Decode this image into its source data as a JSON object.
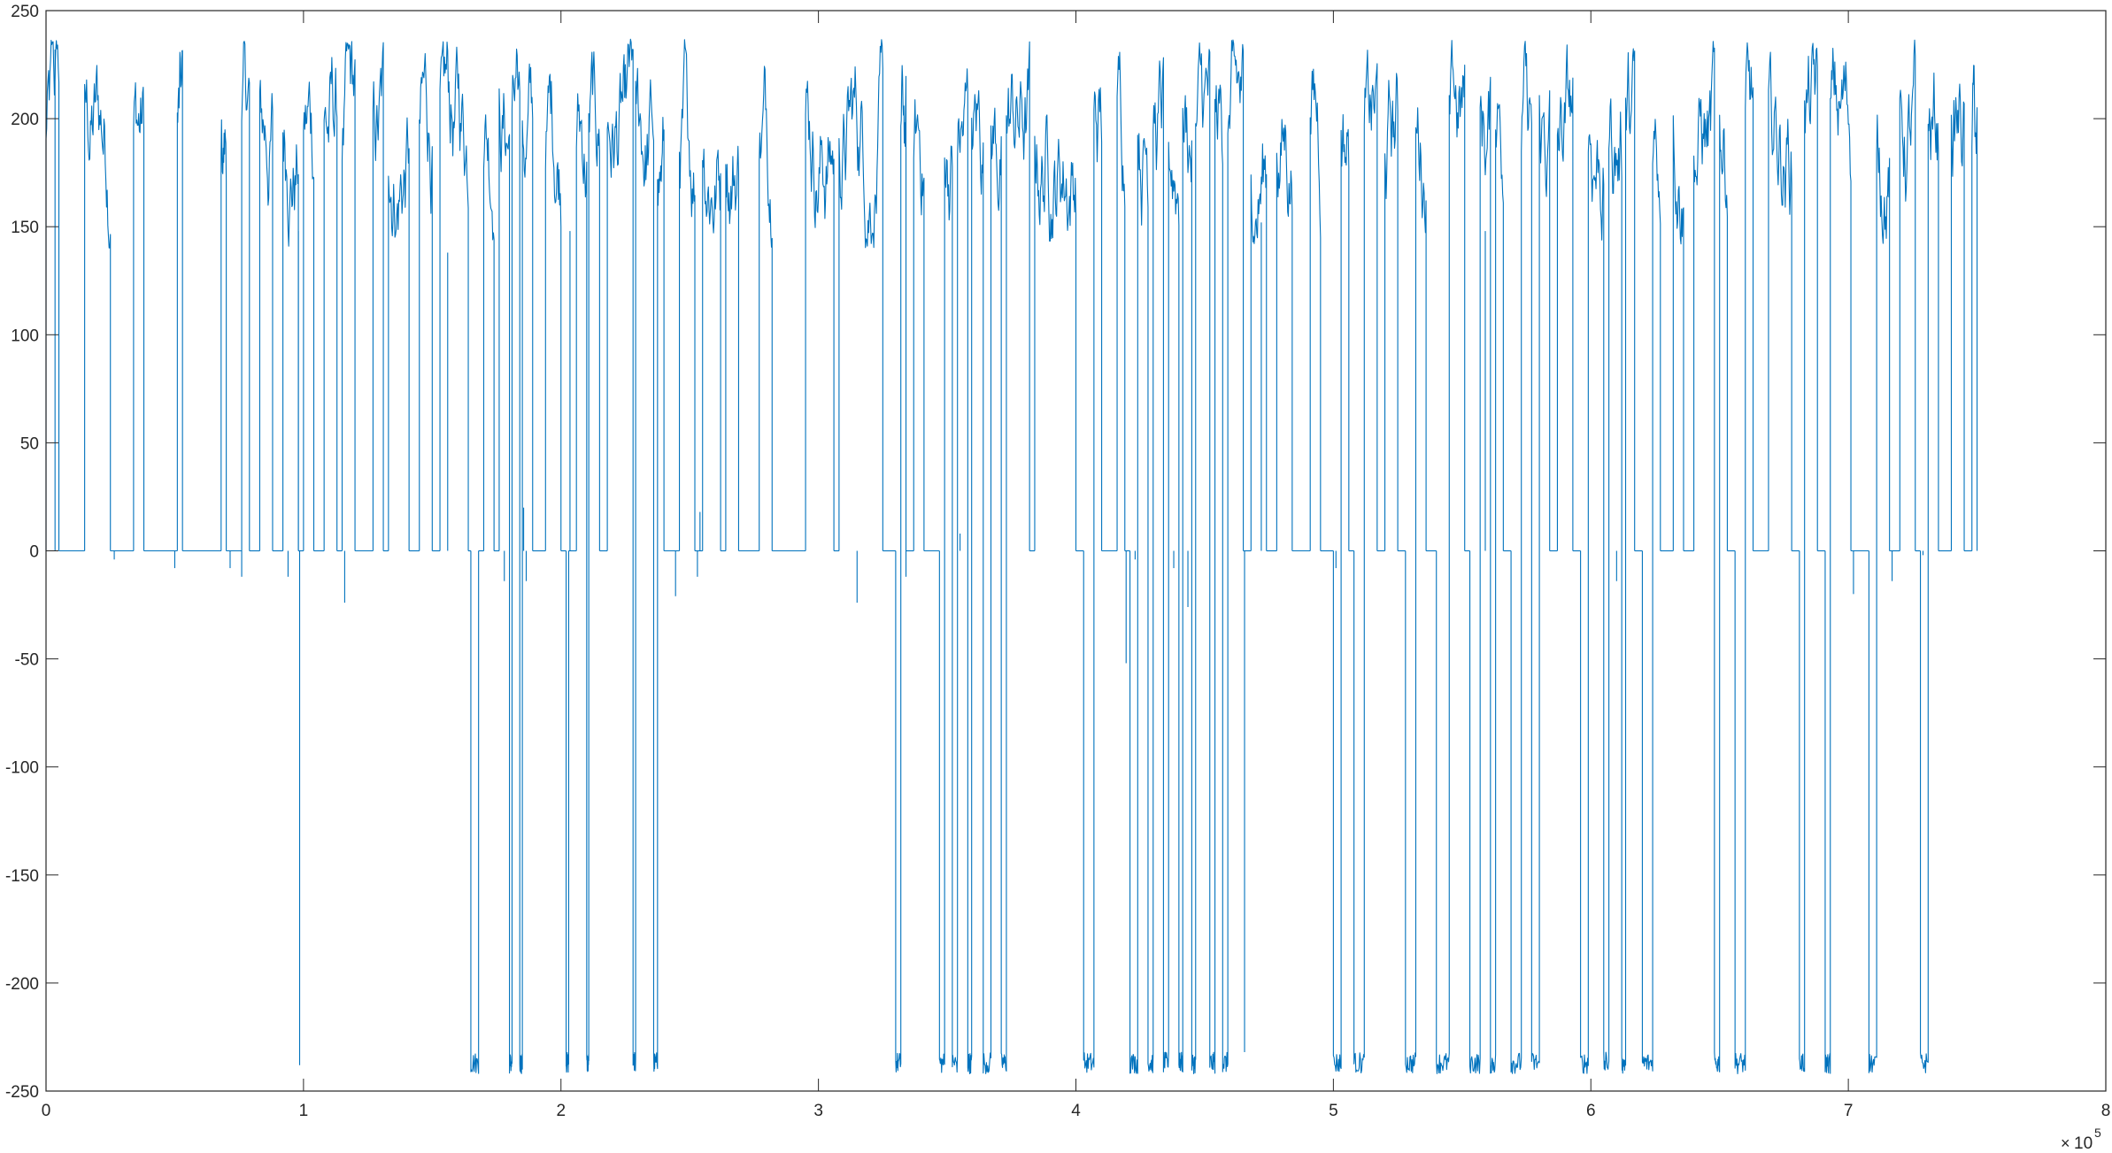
{
  "chart_data": {
    "type": "line",
    "title": "",
    "xlabel": "",
    "ylabel": "",
    "xlim": [
      0,
      800000
    ],
    "ylim": [
      -250,
      250
    ],
    "x_exponent_label": {
      "base": "10",
      "exponent": "5"
    },
    "x_ticks": [
      {
        "value": 0,
        "label": "0"
      },
      {
        "value": 100000,
        "label": "1"
      },
      {
        "value": 200000,
        "label": "2"
      },
      {
        "value": 300000,
        "label": "3"
      },
      {
        "value": 400000,
        "label": "4"
      },
      {
        "value": 500000,
        "label": "5"
      },
      {
        "value": 600000,
        "label": "6"
      },
      {
        "value": 700000,
        "label": "7"
      },
      {
        "value": 800000,
        "label": "8"
      }
    ],
    "y_ticks": [
      {
        "value": 250,
        "label": "250"
      },
      {
        "value": 200,
        "label": "200"
      },
      {
        "value": 150,
        "label": "150"
      },
      {
        "value": 100,
        "label": "100"
      },
      {
        "value": 50,
        "label": "50"
      },
      {
        "value": 0,
        "label": "0"
      },
      {
        "value": -50,
        "label": "-50"
      },
      {
        "value": -100,
        "label": "-100"
      },
      {
        "value": -150,
        "label": "-150"
      },
      {
        "value": -200,
        "label": "-200"
      },
      {
        "value": -250,
        "label": "-250"
      }
    ],
    "grid": false,
    "line_color": "#0072BD",
    "series": [
      {
        "x_range": [
          0,
          750000
        ],
        "baseline": 0,
        "positive_band": [
          140,
          237
        ],
        "negative_band": [
          -244,
          -232
        ],
        "segments": [
          [
            0,
            5000,
            "hi"
          ],
          [
            5000,
            15000,
            "z"
          ],
          [
            15000,
            25000,
            "hi"
          ],
          [
            25000,
            34000,
            "z"
          ],
          [
            34000,
            38000,
            "hi"
          ],
          [
            38000,
            51000,
            "z"
          ],
          [
            51000,
            53000,
            "hi"
          ],
          [
            53000,
            68000,
            "z"
          ],
          [
            68000,
            70000,
            "hi"
          ],
          [
            70000,
            76000,
            "z"
          ],
          [
            76000,
            79000,
            "hi"
          ],
          [
            79000,
            83000,
            "z"
          ],
          [
            83000,
            88000,
            "hi"
          ],
          [
            88000,
            92000,
            "z"
          ],
          [
            92000,
            98000,
            "hi"
          ],
          [
            98000,
            100000,
            "z"
          ],
          [
            100000,
            104000,
            "hi"
          ],
          [
            104000,
            108000,
            "z"
          ],
          [
            108000,
            113000,
            "hi"
          ],
          [
            113000,
            115000,
            "z"
          ],
          [
            115000,
            120000,
            "hi"
          ],
          [
            120000,
            127000,
            "z"
          ],
          [
            127000,
            131000,
            "hi"
          ],
          [
            131000,
            133000,
            "z"
          ],
          [
            133000,
            141000,
            "hi"
          ],
          [
            141000,
            145000,
            "z"
          ],
          [
            145000,
            150000,
            "hi"
          ],
          [
            150000,
            153000,
            "z"
          ],
          [
            153000,
            164000,
            "hi"
          ],
          [
            164000,
            165000,
            "z"
          ],
          [
            165000,
            168000,
            "lo"
          ],
          [
            168000,
            170000,
            "z"
          ],
          [
            170000,
            174000,
            "hi"
          ],
          [
            174000,
            176000,
            "z"
          ],
          [
            176000,
            180000,
            "hi"
          ],
          [
            180000,
            181000,
            "lo"
          ],
          [
            181000,
            184000,
            "hi"
          ],
          [
            184000,
            185000,
            "lo"
          ],
          [
            185000,
            189000,
            "hi"
          ],
          [
            189000,
            194000,
            "z"
          ],
          [
            194000,
            200000,
            "hi"
          ],
          [
            200000,
            202000,
            "z"
          ],
          [
            202000,
            203000,
            "lo"
          ],
          [
            203000,
            206000,
            "z"
          ],
          [
            206000,
            210000,
            "hi"
          ],
          [
            210000,
            210800,
            "lo"
          ],
          [
            210800,
            215000,
            "hi"
          ],
          [
            215000,
            218000,
            "z"
          ],
          [
            218000,
            228000,
            "hi"
          ],
          [
            228000,
            229000,
            "lo"
          ],
          [
            229000,
            236000,
            "hi"
          ],
          [
            236000,
            237500,
            "lo"
          ],
          [
            237500,
            240000,
            "hi"
          ],
          [
            240000,
            246000,
            "z"
          ],
          [
            246000,
            252000,
            "hi"
          ],
          [
            252000,
            255000,
            "z"
          ],
          [
            255000,
            262000,
            "hi"
          ],
          [
            262000,
            264000,
            "z"
          ],
          [
            264000,
            269000,
            "hi"
          ],
          [
            269000,
            277000,
            "z"
          ],
          [
            277000,
            282000,
            "hi"
          ],
          [
            282000,
            295000,
            "z"
          ],
          [
            295000,
            306000,
            "hi"
          ],
          [
            306000,
            308000,
            "z"
          ],
          [
            308000,
            325000,
            "hi"
          ],
          [
            325000,
            330000,
            "z"
          ],
          [
            330000,
            332000,
            "lo"
          ],
          [
            332000,
            334000,
            "hi"
          ],
          [
            334000,
            337000,
            "z"
          ],
          [
            337000,
            341000,
            "hi"
          ],
          [
            341000,
            347000,
            "z"
          ],
          [
            347000,
            349000,
            "lo"
          ],
          [
            349000,
            352000,
            "hi"
          ],
          [
            352000,
            354000,
            "lo"
          ],
          [
            354000,
            358000,
            "hi"
          ],
          [
            358000,
            359500,
            "lo"
          ],
          [
            359500,
            364000,
            "hi"
          ],
          [
            364000,
            367000,
            "lo"
          ],
          [
            367000,
            371000,
            "hi"
          ],
          [
            371000,
            373000,
            "lo"
          ],
          [
            373000,
            382000,
            "hi"
          ],
          [
            382000,
            384000,
            "z"
          ],
          [
            384000,
            400000,
            "hi"
          ],
          [
            400000,
            403000,
            "z"
          ],
          [
            403000,
            407000,
            "lo"
          ],
          [
            407000,
            410000,
            "hi"
          ],
          [
            410000,
            416000,
            "z"
          ],
          [
            416000,
            419000,
            "hi"
          ],
          [
            419000,
            421000,
            "z"
          ],
          [
            421000,
            424000,
            "lo"
          ],
          [
            424000,
            428000,
            "hi"
          ],
          [
            428000,
            430000,
            "lo"
          ],
          [
            430000,
            434000,
            "hi"
          ],
          [
            434000,
            436000,
            "lo"
          ],
          [
            436000,
            440000,
            "hi"
          ],
          [
            440000,
            441500,
            "lo"
          ],
          [
            441500,
            445000,
            "hi"
          ],
          [
            445000,
            446500,
            "lo"
          ],
          [
            446500,
            452000,
            "hi"
          ],
          [
            452000,
            454000,
            "lo"
          ],
          [
            454000,
            457000,
            "hi"
          ],
          [
            457000,
            459000,
            "lo"
          ],
          [
            459000,
            465000,
            "hi"
          ],
          [
            465000,
            468000,
            "z"
          ],
          [
            468000,
            474000,
            "hi"
          ],
          [
            474000,
            478000,
            "z"
          ],
          [
            478000,
            484000,
            "hi"
          ],
          [
            484000,
            491000,
            "z"
          ],
          [
            491000,
            495000,
            "hi"
          ],
          [
            495000,
            500000,
            "z"
          ],
          [
            500000,
            503000,
            "lo"
          ],
          [
            503000,
            506000,
            "hi"
          ],
          [
            506000,
            508000,
            "z"
          ],
          [
            508000,
            512000,
            "lo"
          ],
          [
            512000,
            517000,
            "hi"
          ],
          [
            517000,
            520000,
            "z"
          ],
          [
            520000,
            525000,
            "hi"
          ],
          [
            525000,
            528000,
            "z"
          ],
          [
            528000,
            532000,
            "lo"
          ],
          [
            532000,
            536000,
            "hi"
          ],
          [
            536000,
            540000,
            "z"
          ],
          [
            540000,
            545000,
            "lo"
          ],
          [
            545000,
            551000,
            "hi"
          ],
          [
            551000,
            553000,
            "z"
          ],
          [
            553000,
            557000,
            "lo"
          ],
          [
            557000,
            561000,
            "hi"
          ],
          [
            561000,
            563000,
            "lo"
          ],
          [
            563000,
            566000,
            "hi"
          ],
          [
            566000,
            569000,
            "z"
          ],
          [
            569000,
            573000,
            "lo"
          ],
          [
            573000,
            577000,
            "hi"
          ],
          [
            577000,
            580000,
            "lo"
          ],
          [
            580000,
            584000,
            "hi"
          ],
          [
            584000,
            587000,
            "z"
          ],
          [
            587000,
            593000,
            "hi"
          ],
          [
            593000,
            596000,
            "z"
          ],
          [
            596000,
            599000,
            "lo"
          ],
          [
            599000,
            605000,
            "hi"
          ],
          [
            605000,
            607000,
            "lo"
          ],
          [
            607000,
            612000,
            "hi"
          ],
          [
            612000,
            613500,
            "lo"
          ],
          [
            613500,
            617000,
            "hi"
          ],
          [
            617000,
            620000,
            "z"
          ],
          [
            620000,
            624000,
            "lo"
          ],
          [
            624000,
            627000,
            "hi"
          ],
          [
            627000,
            632000,
            "z"
          ],
          [
            632000,
            636000,
            "hi"
          ],
          [
            636000,
            640000,
            "z"
          ],
          [
            640000,
            648000,
            "hi"
          ],
          [
            648000,
            650000,
            "lo"
          ],
          [
            650000,
            653000,
            "hi"
          ],
          [
            653000,
            656000,
            "z"
          ],
          [
            656000,
            660000,
            "lo"
          ],
          [
            660000,
            663000,
            "hi"
          ],
          [
            663000,
            669000,
            "z"
          ],
          [
            669000,
            678000,
            "hi"
          ],
          [
            678000,
            681000,
            "z"
          ],
          [
            681000,
            683000,
            "lo"
          ],
          [
            683000,
            688000,
            "hi"
          ],
          [
            688000,
            691000,
            "z"
          ],
          [
            691000,
            693000,
            "lo"
          ],
          [
            693000,
            701000,
            "hi"
          ],
          [
            701000,
            708000,
            "z"
          ],
          [
            708000,
            711000,
            "lo"
          ],
          [
            711000,
            716000,
            "hi"
          ],
          [
            716000,
            720000,
            "z"
          ],
          [
            720000,
            726000,
            "hi"
          ],
          [
            726000,
            728000,
            "z"
          ],
          [
            728000,
            731000,
            "lo"
          ],
          [
            731000,
            735000,
            "hi"
          ],
          [
            735000,
            740000,
            "z"
          ],
          [
            740000,
            745000,
            "hi"
          ],
          [
            745000,
            748000,
            "z"
          ],
          [
            748000,
            750000,
            "hi"
          ]
        ],
        "spikes": [
          {
            "x": 3500,
            "y": 232
          },
          {
            "x": 26500,
            "y": -4
          },
          {
            "x": 50000,
            "y": -8
          },
          {
            "x": 71500,
            "y": -8
          },
          {
            "x": 76000,
            "y": -12
          },
          {
            "x": 94000,
            "y": -12
          },
          {
            "x": 98000,
            "y": 148
          },
          {
            "x": 98500,
            "y": -238
          },
          {
            "x": 116000,
            "y": -24
          },
          {
            "x": 156000,
            "y": 138
          },
          {
            "x": 178000,
            "y": -14
          },
          {
            "x": 185500,
            "y": 20
          },
          {
            "x": 186500,
            "y": -14
          },
          {
            "x": 203500,
            "y": 148
          },
          {
            "x": 244500,
            "y": -21
          },
          {
            "x": 253000,
            "y": -12
          },
          {
            "x": 254000,
            "y": 18
          },
          {
            "x": 315000,
            "y": -24
          },
          {
            "x": 334000,
            "y": -12
          },
          {
            "x": 355000,
            "y": 8
          },
          {
            "x": 419500,
            "y": -52
          },
          {
            "x": 423000,
            "y": -4
          },
          {
            "x": 438000,
            "y": -8
          },
          {
            "x": 443500,
            "y": -26
          },
          {
            "x": 465500,
            "y": -232
          },
          {
            "x": 472000,
            "y": 152
          },
          {
            "x": 501000,
            "y": -8
          },
          {
            "x": 559000,
            "y": 148
          },
          {
            "x": 610000,
            "y": -14
          },
          {
            "x": 702000,
            "y": -20
          },
          {
            "x": 717000,
            "y": -14
          },
          {
            "x": 729000,
            "y": -2
          }
        ]
      }
    ]
  }
}
